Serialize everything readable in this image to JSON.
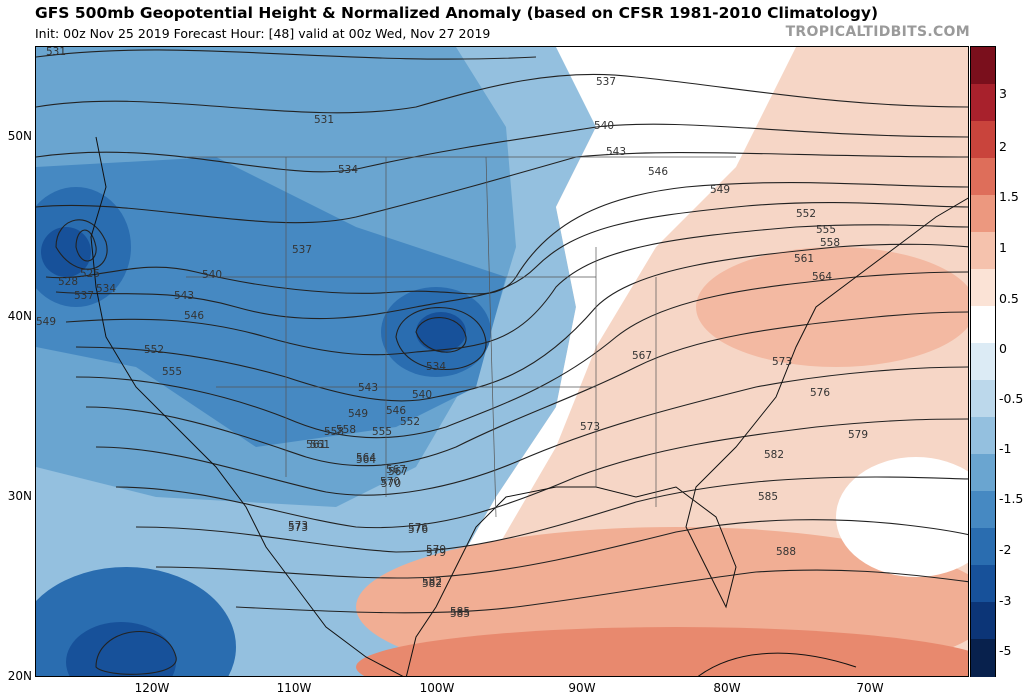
{
  "header": {
    "title": "GFS 500mb Geopotential Height & Normalized Anomaly (based on CFSR 1981-2010 Climatology)",
    "subtitle": "Init: 00z Nov 25 2019   Forecast Hour: [48]   valid at 00z Wed, Nov 27 2019",
    "brand": "TROPICALTIDBITS.COM"
  },
  "axes": {
    "lat_labels": [
      "50N",
      "40N",
      "30N",
      "20N"
    ],
    "lon_labels": [
      "120W",
      "110W",
      "100W",
      "90W",
      "80W",
      "70W"
    ]
  },
  "colorbar": {
    "labels": [
      "3",
      "2",
      "1.5",
      "1",
      "0.5",
      "0",
      "-0.5",
      "-1",
      "-1.5",
      "-2",
      "-3",
      "-5"
    ],
    "colors": [
      "#7a0f1c",
      "#a8212c",
      "#c9443c",
      "#de6e5a",
      "#ec987f",
      "#f5c2ad",
      "#fbe3d6",
      "#ffffff",
      "#dcebf5",
      "#bcd8eb",
      "#94c0df",
      "#6aa5d0",
      "#4689c2",
      "#2a6db0",
      "#17519a",
      "#0c3577",
      "#08214d"
    ]
  },
  "contour_labels": [
    "531",
    "531",
    "534",
    "537",
    "540",
    "543",
    "546",
    "549",
    "552",
    "555",
    "558",
    "561",
    "564",
    "567",
    "570",
    "573",
    "576",
    "579",
    "582",
    "585",
    "588",
    "528",
    "525",
    "537",
    "534",
    "537",
    "540",
    "543",
    "546",
    "549",
    "552",
    "555",
    "558",
    "561",
    "564",
    "567",
    "573",
    "573",
    "576",
    "579",
    "582",
    "585",
    "534",
    "540",
    "543",
    "546",
    "549",
    "552",
    "555",
    "558",
    "561",
    "564",
    "567",
    "570",
    "573",
    "576",
    "579",
    "582",
    "585"
  ]
}
